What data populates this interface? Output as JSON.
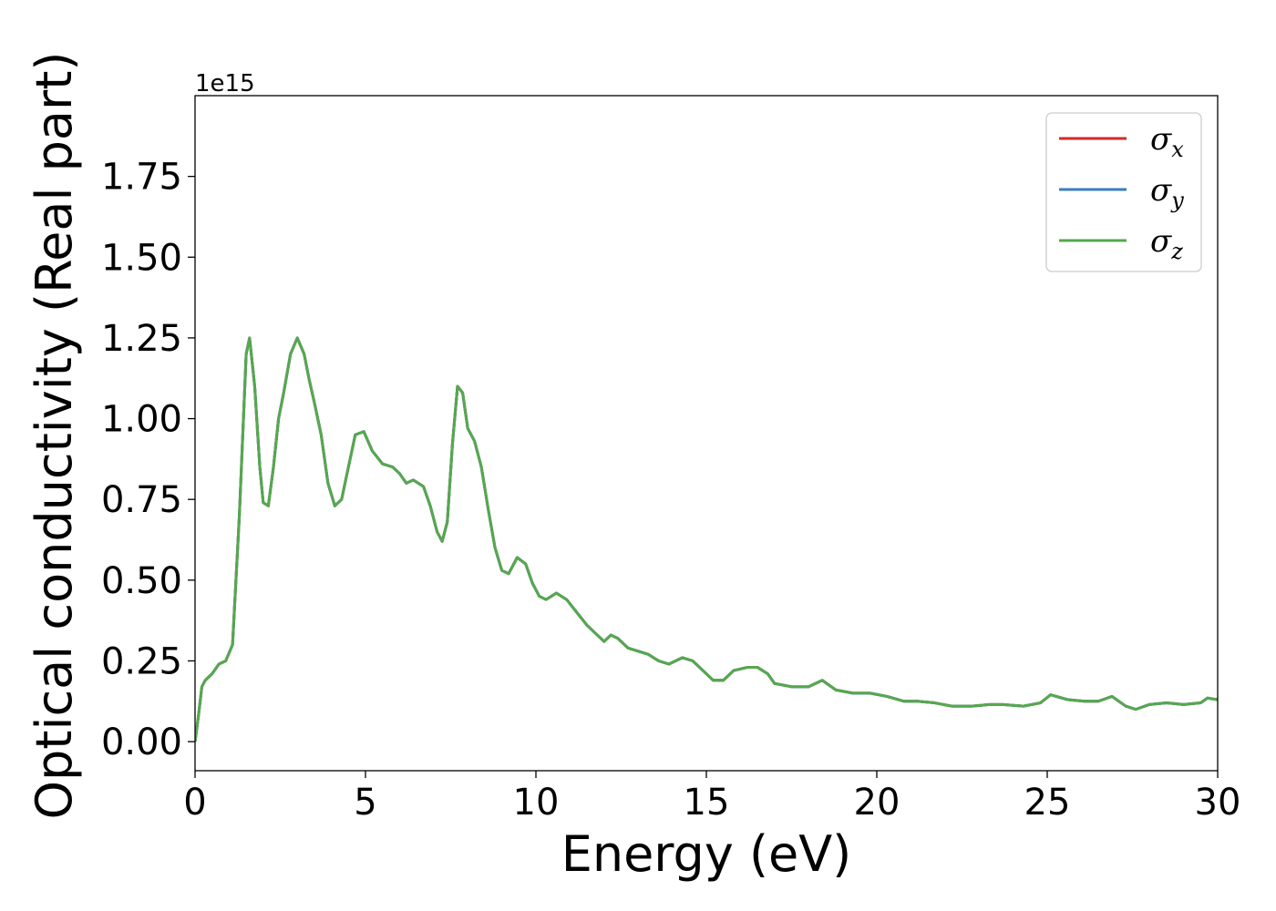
{
  "chart_data": {
    "type": "line",
    "xlabel": "Energy (eV)",
    "ylabel": "Optical conductivity (Real part)",
    "y_offset_label": "1e15",
    "xlim": [
      0,
      30
    ],
    "ylim": [
      -0.09,
      2.0
    ],
    "x_ticks": [
      0,
      5,
      10,
      15,
      20,
      25,
      30
    ],
    "x_tick_labels": [
      "0",
      "5",
      "10",
      "15",
      "20",
      "25",
      "30"
    ],
    "y_ticks": [
      0,
      0.25,
      0.5,
      0.75,
      1.0,
      1.25,
      1.5,
      1.75
    ],
    "y_tick_labels": [
      "0.00",
      "0.25",
      "0.50",
      "0.75",
      "1.00",
      "1.25",
      "1.50",
      "1.75"
    ],
    "grid": false,
    "legend_position": "top-right",
    "series_x": [
      0,
      0.1,
      0.2,
      0.3,
      0.5,
      0.7,
      0.9,
      1.1,
      1.3,
      1.5,
      1.6,
      1.75,
      1.9,
      2.0,
      2.15,
      2.3,
      2.45,
      2.6,
      2.8,
      3.0,
      3.2,
      3.35,
      3.5,
      3.7,
      3.9,
      4.1,
      4.3,
      4.5,
      4.7,
      4.95,
      5.2,
      5.5,
      5.8,
      6.0,
      6.2,
      6.4,
      6.7,
      6.9,
      7.1,
      7.25,
      7.4,
      7.55,
      7.7,
      7.85,
      8.0,
      8.2,
      8.4,
      8.6,
      8.8,
      9.0,
      9.2,
      9.45,
      9.7,
      9.9,
      10.1,
      10.3,
      10.6,
      10.9,
      11.2,
      11.5,
      11.8,
      12.0,
      12.2,
      12.4,
      12.7,
      13.0,
      13.3,
      13.6,
      13.9,
      14.3,
      14.6,
      14.9,
      15.2,
      15.5,
      15.8,
      16.2,
      16.5,
      16.8,
      17.0,
      17.5,
      18.0,
      18.4,
      18.8,
      19.3,
      19.8,
      20.3,
      20.8,
      21.2,
      21.7,
      22.2,
      22.8,
      23.3,
      23.7,
      24.3,
      24.8,
      25.1,
      25.6,
      26.1,
      26.5,
      26.9,
      27.3,
      27.6,
      28.0,
      28.5,
      29.0,
      29.5,
      29.7,
      30.0
    ],
    "series": [
      {
        "name": "σx",
        "legend_base": "σ",
        "legend_sub": "x",
        "color": "#d62728",
        "values": [
          0,
          0.08,
          0.17,
          0.19,
          0.21,
          0.24,
          0.25,
          0.3,
          0.7,
          1.2,
          1.25,
          1.1,
          0.85,
          0.74,
          0.73,
          0.85,
          1.0,
          1.08,
          1.2,
          1.25,
          1.2,
          1.12,
          1.05,
          0.95,
          0.8,
          0.73,
          0.75,
          0.85,
          0.95,
          0.96,
          0.9,
          0.86,
          0.85,
          0.83,
          0.8,
          0.81,
          0.79,
          0.73,
          0.65,
          0.62,
          0.68,
          0.92,
          1.1,
          1.08,
          0.97,
          0.93,
          0.85,
          0.72,
          0.6,
          0.53,
          0.52,
          0.57,
          0.55,
          0.49,
          0.45,
          0.44,
          0.46,
          0.44,
          0.4,
          0.36,
          0.33,
          0.31,
          0.33,
          0.32,
          0.29,
          0.28,
          0.27,
          0.25,
          0.24,
          0.26,
          0.25,
          0.22,
          0.19,
          0.19,
          0.22,
          0.23,
          0.23,
          0.21,
          0.18,
          0.17,
          0.17,
          0.19,
          0.16,
          0.15,
          0.15,
          0.14,
          0.125,
          0.125,
          0.12,
          0.11,
          0.11,
          0.115,
          0.115,
          0.11,
          0.12,
          0.145,
          0.13,
          0.125,
          0.125,
          0.14,
          0.11,
          0.1,
          0.115,
          0.12,
          0.115,
          0.12,
          0.135,
          0.13
        ]
      },
      {
        "name": "σy",
        "legend_base": "σ",
        "legend_sub": "y",
        "color": "#3a7dbf",
        "values": [
          0,
          0.08,
          0.17,
          0.19,
          0.21,
          0.24,
          0.25,
          0.3,
          0.7,
          1.2,
          1.25,
          1.1,
          0.85,
          0.74,
          0.73,
          0.85,
          1.0,
          1.08,
          1.2,
          1.25,
          1.2,
          1.12,
          1.05,
          0.95,
          0.8,
          0.73,
          0.75,
          0.85,
          0.95,
          0.96,
          0.9,
          0.86,
          0.85,
          0.83,
          0.8,
          0.81,
          0.79,
          0.73,
          0.65,
          0.62,
          0.68,
          0.92,
          1.1,
          1.08,
          0.97,
          0.93,
          0.85,
          0.72,
          0.6,
          0.53,
          0.52,
          0.57,
          0.55,
          0.49,
          0.45,
          0.44,
          0.46,
          0.44,
          0.4,
          0.36,
          0.33,
          0.31,
          0.33,
          0.32,
          0.29,
          0.28,
          0.27,
          0.25,
          0.24,
          0.26,
          0.25,
          0.22,
          0.19,
          0.19,
          0.22,
          0.23,
          0.23,
          0.21,
          0.18,
          0.17,
          0.17,
          0.19,
          0.16,
          0.15,
          0.15,
          0.14,
          0.125,
          0.125,
          0.12,
          0.11,
          0.11,
          0.115,
          0.115,
          0.11,
          0.12,
          0.145,
          0.13,
          0.125,
          0.125,
          0.14,
          0.11,
          0.1,
          0.115,
          0.12,
          0.115,
          0.12,
          0.135,
          0.13
        ]
      },
      {
        "name": "σz",
        "legend_base": "σ",
        "legend_sub": "z",
        "color": "#55a84f",
        "values": [
          0,
          0.08,
          0.17,
          0.19,
          0.21,
          0.24,
          0.25,
          0.3,
          0.7,
          1.2,
          1.25,
          1.1,
          0.85,
          0.74,
          0.73,
          0.85,
          1.0,
          1.08,
          1.2,
          1.25,
          1.2,
          1.12,
          1.05,
          0.95,
          0.8,
          0.73,
          0.75,
          0.85,
          0.95,
          0.96,
          0.9,
          0.86,
          0.85,
          0.83,
          0.8,
          0.81,
          0.79,
          0.73,
          0.65,
          0.62,
          0.68,
          0.92,
          1.1,
          1.08,
          0.97,
          0.93,
          0.85,
          0.72,
          0.6,
          0.53,
          0.52,
          0.57,
          0.55,
          0.49,
          0.45,
          0.44,
          0.46,
          0.44,
          0.4,
          0.36,
          0.33,
          0.31,
          0.33,
          0.32,
          0.29,
          0.28,
          0.27,
          0.25,
          0.24,
          0.26,
          0.25,
          0.22,
          0.19,
          0.19,
          0.22,
          0.23,
          0.23,
          0.21,
          0.18,
          0.17,
          0.17,
          0.19,
          0.16,
          0.15,
          0.15,
          0.14,
          0.125,
          0.125,
          0.12,
          0.11,
          0.11,
          0.115,
          0.115,
          0.11,
          0.12,
          0.145,
          0.13,
          0.125,
          0.125,
          0.14,
          0.11,
          0.1,
          0.115,
          0.12,
          0.115,
          0.12,
          0.135,
          0.13
        ]
      }
    ]
  }
}
